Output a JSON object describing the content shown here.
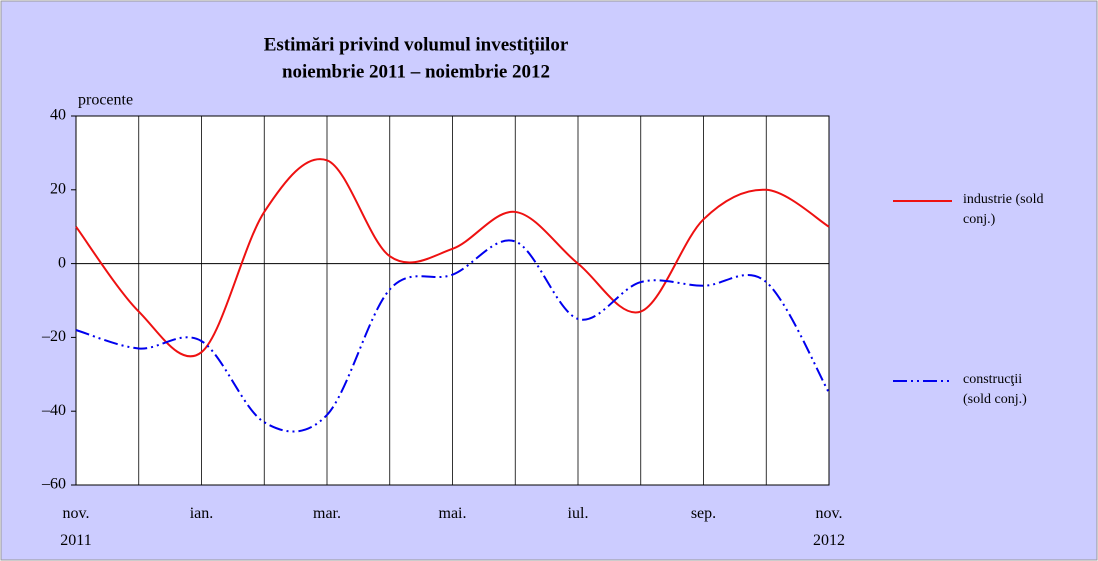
{
  "chart_data": {
    "type": "line",
    "title": "Estimări privind volumul investiţiilor",
    "subtitle": "noiembrie 2011 – noiembrie 2012",
    "y_label": "procente",
    "categories": [
      "nov. 2011",
      null,
      "ian.",
      null,
      "mar.",
      null,
      "mai.",
      null,
      "iul.",
      null,
      "sep.",
      null,
      "nov. 2012"
    ],
    "series": [
      {
        "name": "industrie (sold conj.)",
        "color": "#ee1111",
        "dash": "solid",
        "values": [
          10,
          -13,
          -24,
          14,
          28,
          2,
          4,
          14,
          0,
          -13,
          12,
          20,
          10
        ]
      },
      {
        "name": "construcţii (sold conj.)",
        "color": "#0000ee",
        "dash": "dashdotdot",
        "values": [
          -18,
          -23,
          -21,
          -43,
          -41,
          -7,
          -3,
          6,
          -15,
          -5,
          -6,
          -5,
          -35
        ]
      }
    ],
    "ylim": [
      -60,
      40
    ],
    "yticks": [
      {
        "value": -60,
        "label": "–60"
      },
      {
        "value": -40,
        "label": "–40"
      },
      {
        "value": -20,
        "label": "–20"
      },
      0,
      20,
      40
    ],
    "grid": "x",
    "background": "#ccccff"
  }
}
